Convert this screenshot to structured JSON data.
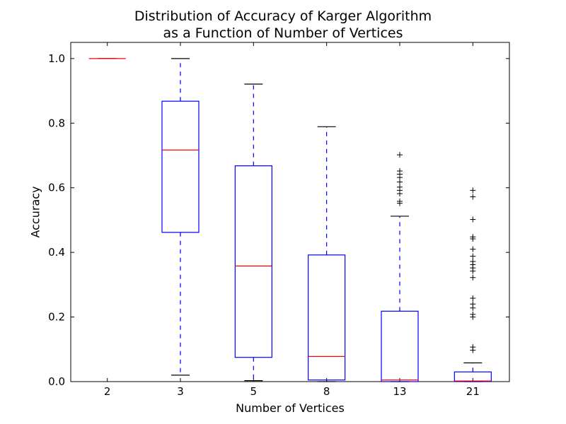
{
  "chart_data": {
    "type": "box",
    "title": [
      "Distribution of Accuracy of Karger Algorithm",
      "as a Function of Number of Vertices"
    ],
    "xlabel": "Number of Vertices",
    "ylabel": "Accuracy",
    "ylim": [
      0.0,
      1.05
    ],
    "yticks": [
      "0.0",
      "0.2",
      "0.4",
      "0.6",
      "0.8",
      "1.0"
    ],
    "categories": [
      "2",
      "3",
      "5",
      "8",
      "13",
      "21"
    ],
    "boxes": [
      {
        "label": "2",
        "whisker_low": 1.0,
        "q1": 1.0,
        "median": 1.0,
        "q3": 1.0,
        "whisker_high": 1.0,
        "outliers": []
      },
      {
        "label": "3",
        "whisker_low": 0.02,
        "q1": 0.462,
        "median": 0.717,
        "q3": 0.868,
        "whisker_high": 1.0,
        "outliers": []
      },
      {
        "label": "5",
        "whisker_low": 0.003,
        "q1": 0.075,
        "median": 0.358,
        "q3": 0.668,
        "whisker_high": 0.921,
        "outliers": []
      },
      {
        "label": "8",
        "whisker_low": 0.0,
        "q1": 0.005,
        "median": 0.078,
        "q3": 0.392,
        "whisker_high": 0.789,
        "outliers": []
      },
      {
        "label": "13",
        "whisker_low": 0.0,
        "q1": 0.0,
        "median": 0.005,
        "q3": 0.218,
        "whisker_high": 0.512,
        "outliers": [
          0.552,
          0.558,
          0.582,
          0.592,
          0.602,
          0.618,
          0.632,
          0.642,
          0.652,
          0.702
        ]
      },
      {
        "label": "21",
        "whisker_low": 0.0,
        "q1": 0.0,
        "median": 0.002,
        "q3": 0.03,
        "whisker_high": 0.058,
        "outliers": [
          0.097,
          0.107,
          0.2,
          0.208,
          0.228,
          0.24,
          0.258,
          0.322,
          0.342,
          0.352,
          0.362,
          0.372,
          0.388,
          0.41,
          0.442,
          0.448,
          0.502,
          0.572,
          0.592
        ]
      }
    ],
    "colors": {
      "box": "#0000ff",
      "median": "#ff0000",
      "cap": "#000000",
      "flier": "#000000"
    },
    "grid": false,
    "legend": "none"
  }
}
